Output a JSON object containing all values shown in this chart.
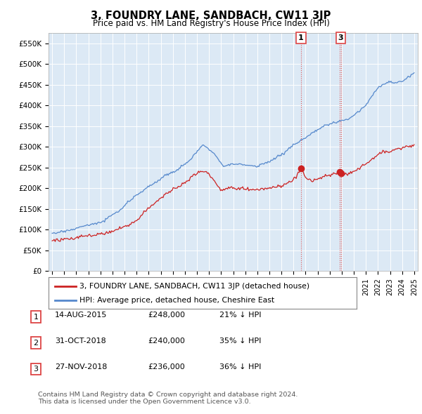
{
  "title": "3, FOUNDRY LANE, SANDBACH, CW11 3JP",
  "subtitle": "Price paid vs. HM Land Registry's House Price Index (HPI)",
  "background_color": "#ffffff",
  "plot_bg_color": "#dce9f5",
  "grid_color": "#ffffff",
  "hpi_color": "#5588cc",
  "price_color": "#cc2222",
  "vline_color": "#dd4444",
  "ylim": [
    0,
    575000
  ],
  "yticks": [
    0,
    50000,
    100000,
    150000,
    200000,
    250000,
    300000,
    350000,
    400000,
    450000,
    500000,
    550000
  ],
  "ytick_labels": [
    "£0",
    "£50K",
    "£100K",
    "£150K",
    "£200K",
    "£250K",
    "£300K",
    "£350K",
    "£400K",
    "£450K",
    "£500K",
    "£550K"
  ],
  "sale_points": [
    {
      "year": 2015.62,
      "price": 248000,
      "label": "1"
    },
    {
      "year": 2018.84,
      "price": 240000,
      "label": "2"
    },
    {
      "year": 2018.92,
      "price": 236000,
      "label": "3"
    }
  ],
  "show_labels": [
    "1",
    "3"
  ],
  "legend_red_label": "3, FOUNDRY LANE, SANDBACH, CW11 3JP (detached house)",
  "legend_blue_label": "HPI: Average price, detached house, Cheshire East",
  "table_rows": [
    {
      "num": "1",
      "date": "14-AUG-2015",
      "price": "£248,000",
      "pct": "21% ↓ HPI"
    },
    {
      "num": "2",
      "date": "31-OCT-2018",
      "price": "£240,000",
      "pct": "35% ↓ HPI"
    },
    {
      "num": "3",
      "date": "27-NOV-2018",
      "price": "£236,000",
      "pct": "36% ↓ HPI"
    }
  ],
  "footer": "Contains HM Land Registry data © Crown copyright and database right 2024.\nThis data is licensed under the Open Government Licence v3.0."
}
